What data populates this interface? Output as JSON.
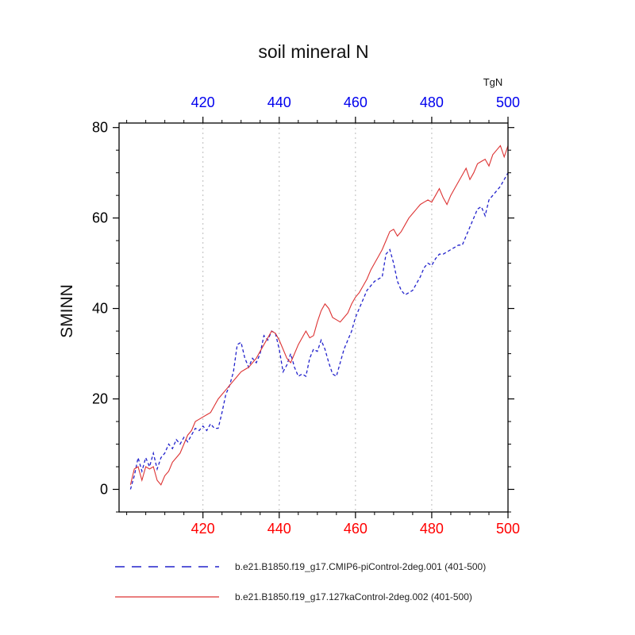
{
  "title": "soil mineral N",
  "colors": {
    "top_axis": "#0000ee",
    "bottom_axis": "#ff0000",
    "grid": "#bbbbbb",
    "axis": "#000000",
    "series_blue": "#2222cc",
    "series_red": "#dd3333"
  },
  "chart_data": {
    "type": "line",
    "title": "soil mineral N",
    "xlabel": "",
    "ylabel": "SMINN",
    "unit": "TgN",
    "xlim": [
      398,
      500
    ],
    "ylim": [
      -5,
      81
    ],
    "xticks": [
      420,
      440,
      460,
      480,
      500
    ],
    "yticks": [
      0,
      20,
      40,
      60,
      80
    ],
    "minor_x_step": 5,
    "minor_y_step": 5,
    "grid_x": [
      420,
      440,
      460,
      480
    ],
    "x_start": 401,
    "legend_position": "bottom",
    "series": [
      {
        "name": "b.e21.B1850.f19_g17.CMIP6-piControl-2deg.001 (401-500)",
        "color": "#2222cc",
        "style": "dashed",
        "values": [
          0,
          3,
          7,
          4,
          7,
          5,
          8,
          4.5,
          7,
          8,
          10,
          9,
          11,
          10,
          11.5,
          10.5,
          12,
          13.5,
          13,
          14,
          13,
          14.5,
          13.5,
          13.5,
          17,
          21,
          23,
          26,
          32,
          32.5,
          29,
          27,
          29,
          28,
          30,
          34,
          33,
          35,
          34.5,
          31,
          26,
          27.5,
          30,
          27,
          25,
          25.5,
          25,
          29,
          31,
          30.5,
          33,
          31,
          28,
          25.5,
          25,
          28,
          31,
          33,
          35,
          38,
          40,
          42,
          44,
          45,
          46,
          46.5,
          47,
          52,
          53,
          50,
          46,
          44,
          43,
          43.5,
          44,
          45.5,
          47,
          49,
          50,
          49.5,
          51,
          52,
          52,
          52.5,
          53,
          53.5,
          54,
          54,
          56,
          58,
          60,
          62,
          62.5,
          60.5,
          64,
          65,
          66,
          67,
          68.5,
          70
        ]
      },
      {
        "name": "b.e21.B1850.f19_g17.127kaControl-2deg.002 (401-500)",
        "color": "#dd3333",
        "style": "solid",
        "values": [
          1,
          4.5,
          5,
          2,
          5,
          4.5,
          5,
          2,
          1,
          3,
          4,
          6,
          7,
          8,
          10,
          12,
          13,
          15,
          15.5,
          16,
          16.5,
          17,
          18.5,
          20,
          21,
          22,
          23,
          24,
          25,
          26,
          26.5,
          27,
          28,
          29,
          30.5,
          32,
          33.5,
          35,
          34.5,
          33,
          31,
          29,
          28,
          30,
          32,
          33.5,
          35,
          33.5,
          34,
          37,
          39.5,
          41,
          40,
          38,
          37.5,
          37,
          38,
          39,
          41,
          42.5,
          43.5,
          45,
          46.5,
          48.5,
          50,
          51.5,
          53,
          55,
          57,
          57.5,
          56,
          57,
          58.5,
          60,
          61,
          62,
          63,
          63.5,
          64,
          63.5,
          65,
          66.5,
          64.5,
          63,
          65,
          66.5,
          68,
          69.5,
          71,
          68.5,
          70,
          72,
          72.5,
          73,
          71.5,
          74,
          75,
          76,
          73.5,
          76
        ]
      }
    ]
  }
}
